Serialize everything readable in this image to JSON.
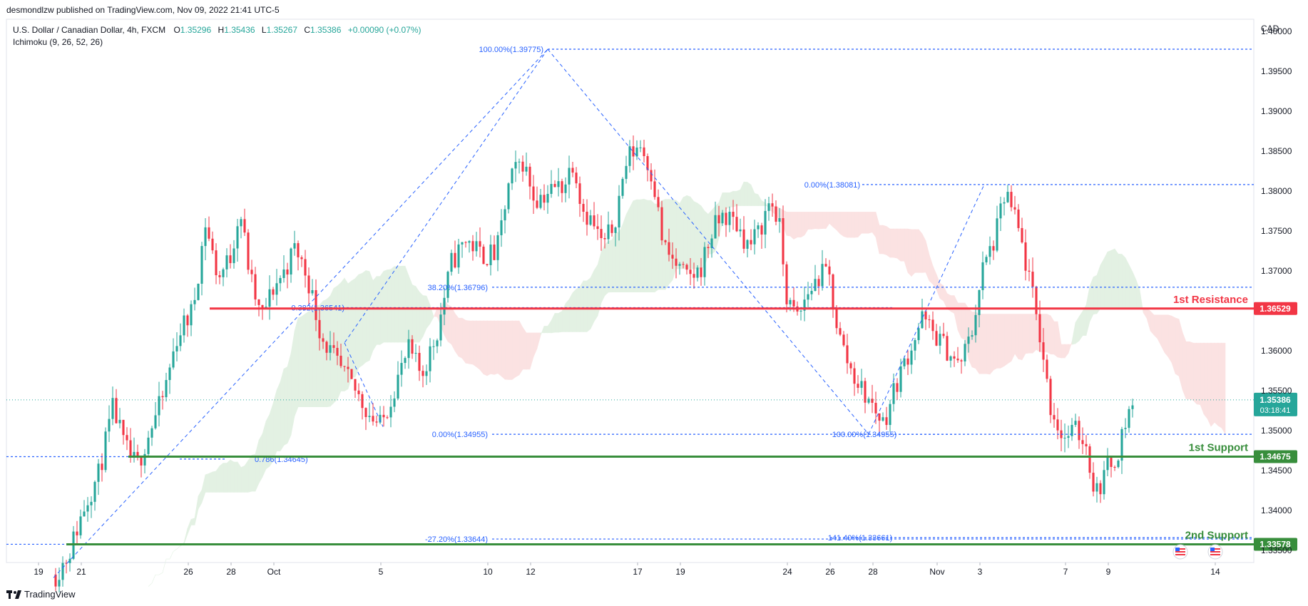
{
  "header": {
    "publisher_line": "desmondlzw published on TradingView.com, Nov 09, 2022 21:41 UTC-5",
    "symbol": "U.S. Dollar / Canadian Dollar, 4h, FXCM",
    "ohlc": {
      "open_label": "O",
      "open": "1.35296",
      "high_label": "H",
      "high": "1.35436",
      "low_label": "L",
      "low": "1.35267",
      "close_label": "C",
      "close": "1.35386",
      "change": "+0.00090 (+0.07%)"
    },
    "indicator": "Ichimoku (9, 26, 52, 26)"
  },
  "colors": {
    "up": "#26a69a",
    "down": "#f23645",
    "fib": "#2962ff",
    "resistance": "#f23645",
    "support": "#388e3c",
    "cloud_bull": "#e3f1e3",
    "cloud_bear": "#fbe2e2",
    "last_price": "#26a69a"
  },
  "chart_data": {
    "type": "candlestick",
    "title": "U.S. Dollar / Canadian Dollar, 4h, FXCM",
    "currency": "CAD",
    "ylim": [
      1.3335,
      1.4015
    ],
    "y_ticks": [
      "1.40000",
      "1.39500",
      "1.39000",
      "1.38500",
      "1.38000",
      "1.37500",
      "1.37000",
      "1.36000",
      "1.35500",
      "1.35000",
      "1.34500",
      "1.34000",
      "1.33500"
    ],
    "x_ticks": [
      {
        "label": "19",
        "day": 19
      },
      {
        "label": "21",
        "day": 21
      },
      {
        "label": "26",
        "day": 26
      },
      {
        "label": "28",
        "day": 28
      },
      {
        "label": "Oct",
        "day": 30
      },
      {
        "label": "5",
        "day": 35
      },
      {
        "label": "10",
        "day": 40
      },
      {
        "label": "12",
        "day": 42
      },
      {
        "label": "17",
        "day": 47
      },
      {
        "label": "19",
        "day": 49
      },
      {
        "label": "24",
        "day": 54
      },
      {
        "label": "26",
        "day": 56
      },
      {
        "label": "28",
        "day": 58
      },
      {
        "label": "Nov",
        "day": 61
      },
      {
        "label": "3",
        "day": 63
      },
      {
        "label": "7",
        "day": 67
      },
      {
        "label": "9",
        "day": 69
      },
      {
        "label": "14",
        "day": 74
      }
    ],
    "close_path": [
      [
        19.8,
        1.332
      ],
      [
        20.4,
        1.3345
      ],
      [
        21.2,
        1.341
      ],
      [
        21.8,
        1.3445
      ],
      [
        22.5,
        1.353
      ],
      [
        23.0,
        1.348
      ],
      [
        23.6,
        1.3455
      ],
      [
        24.2,
        1.35
      ],
      [
        24.8,
        1.354
      ],
      [
        25.5,
        1.362
      ],
      [
        26.2,
        1.365
      ],
      [
        26.8,
        1.376
      ],
      [
        27.4,
        1.369
      ],
      [
        28.0,
        1.372
      ],
      [
        28.4,
        1.378
      ],
      [
        28.9,
        1.369
      ],
      [
        29.4,
        1.364
      ],
      [
        30.0,
        1.368
      ],
      [
        30.5,
        1.37
      ],
      [
        31.0,
        1.373
      ],
      [
        31.6,
        1.369
      ],
      [
        32.2,
        1.362
      ],
      [
        33.0,
        1.358
      ],
      [
        33.8,
        1.355
      ],
      [
        34.5,
        1.352
      ],
      [
        35.0,
        1.3505
      ],
      [
        35.7,
        1.356
      ],
      [
        36.3,
        1.36
      ],
      [
        36.9,
        1.357
      ],
      [
        37.6,
        1.362
      ],
      [
        38.3,
        1.371
      ],
      [
        39.0,
        1.374
      ],
      [
        39.7,
        1.372
      ],
      [
        40.4,
        1.372
      ],
      [
        41.0,
        1.381
      ],
      [
        41.6,
        1.384
      ],
      [
        42.2,
        1.379
      ],
      [
        42.9,
        1.38
      ],
      [
        43.6,
        1.381
      ],
      [
        44.0,
        1.384
      ],
      [
        44.4,
        1.378
      ],
      [
        44.9,
        1.376
      ],
      [
        45.4,
        1.373
      ],
      [
        45.9,
        1.376
      ],
      [
        46.5,
        1.384
      ],
      [
        47.1,
        1.386
      ],
      [
        47.7,
        1.382
      ],
      [
        48.2,
        1.373
      ],
      [
        48.7,
        1.371
      ],
      [
        49.3,
        1.369
      ],
      [
        49.9,
        1.37
      ],
      [
        50.5,
        1.375
      ],
      [
        51.0,
        1.377
      ],
      [
        51.6,
        1.376
      ],
      [
        52.2,
        1.373
      ],
      [
        52.7,
        1.375
      ],
      [
        53.2,
        1.379
      ],
      [
        53.6,
        1.376
      ],
      [
        54.0,
        1.366
      ],
      [
        54.5,
        1.364
      ],
      [
        54.9,
        1.367
      ],
      [
        55.4,
        1.369
      ],
      [
        55.9,
        1.37
      ],
      [
        56.4,
        1.362
      ],
      [
        56.9,
        1.358
      ],
      [
        57.5,
        1.355
      ],
      [
        58.0,
        1.353
      ],
      [
        58.5,
        1.351
      ],
      [
        59.1,
        1.356
      ],
      [
        59.7,
        1.36
      ],
      [
        60.3,
        1.364
      ],
      [
        60.9,
        1.362
      ],
      [
        61.5,
        1.36
      ],
      [
        62.0,
        1.358
      ],
      [
        62.6,
        1.362
      ],
      [
        63.1,
        1.37
      ],
      [
        63.7,
        1.374
      ],
      [
        64.2,
        1.38
      ],
      [
        64.8,
        1.375
      ],
      [
        65.3,
        1.369
      ],
      [
        65.8,
        1.362
      ],
      [
        66.3,
        1.353
      ],
      [
        66.9,
        1.349
      ],
      [
        67.4,
        1.35
      ],
      [
        67.9,
        1.349
      ],
      [
        68.4,
        1.342
      ],
      [
        68.9,
        1.345
      ],
      [
        69.4,
        1.347
      ],
      [
        69.9,
        1.352
      ],
      [
        70.2,
        1.3539
      ]
    ],
    "fib_retracement_a": {
      "from": {
        "day": 19.7,
        "price": 1.3316
      },
      "to": {
        "day": 42.8,
        "price": 1.39775
      },
      "levels": [
        {
          "label": "100.00%(1.39775)",
          "price": 1.39775
        },
        {
          "label": "0.382(1.36541)",
          "price": 1.36541
        },
        {
          "label": "0.786(1.34645)",
          "price": 1.34645
        }
      ]
    },
    "fib_swing_b": {
      "points": [
        [
          42.8,
          1.39775
        ],
        [
          57.8,
          1.34955
        ],
        [
          63.2,
          1.38081
        ]
      ],
      "levels": [
        {
          "label": "0.00%(1.38081)",
          "price": 1.38081
        },
        {
          "label": "38.20%(1.36796)",
          "price": 1.36796
        },
        {
          "label": "0.00%(1.34955)",
          "price": 1.34955
        },
        {
          "label": "-27.20%(1.33644)",
          "price": 1.33644
        }
      ]
    },
    "fib_swing_c": {
      "points": [
        [
          33.3,
          1.361
        ],
        [
          35.1,
          1.3505
        ]
      ],
      "points2": [
        [
          57.8,
          1.34955
        ],
        [
          63.2,
          1.38081
        ]
      ],
      "levels": [
        {
          "label": "100.00%(1.34955)",
          "price": 1.34955
        },
        {
          "label": "141.40%(1.33661)",
          "price": 1.33661
        }
      ]
    },
    "key_levels": [
      {
        "name": "1st Resistance",
        "price": 1.36529,
        "price_label": "1.36529",
        "role": "resistance",
        "from_day": 27
      },
      {
        "name": "1st Support",
        "price": 1.34675,
        "price_label": "1.34675",
        "role": "support",
        "from_day": 23.2
      },
      {
        "name": "2nd Support",
        "price": 1.33578,
        "price_label": "1.33578",
        "role": "support",
        "from_day": 20.3
      }
    ],
    "last_price": {
      "price": 1.35386,
      "label": "1.35386",
      "countdown": "03:18:41"
    }
  },
  "footer": {
    "brand": "TradingView"
  }
}
